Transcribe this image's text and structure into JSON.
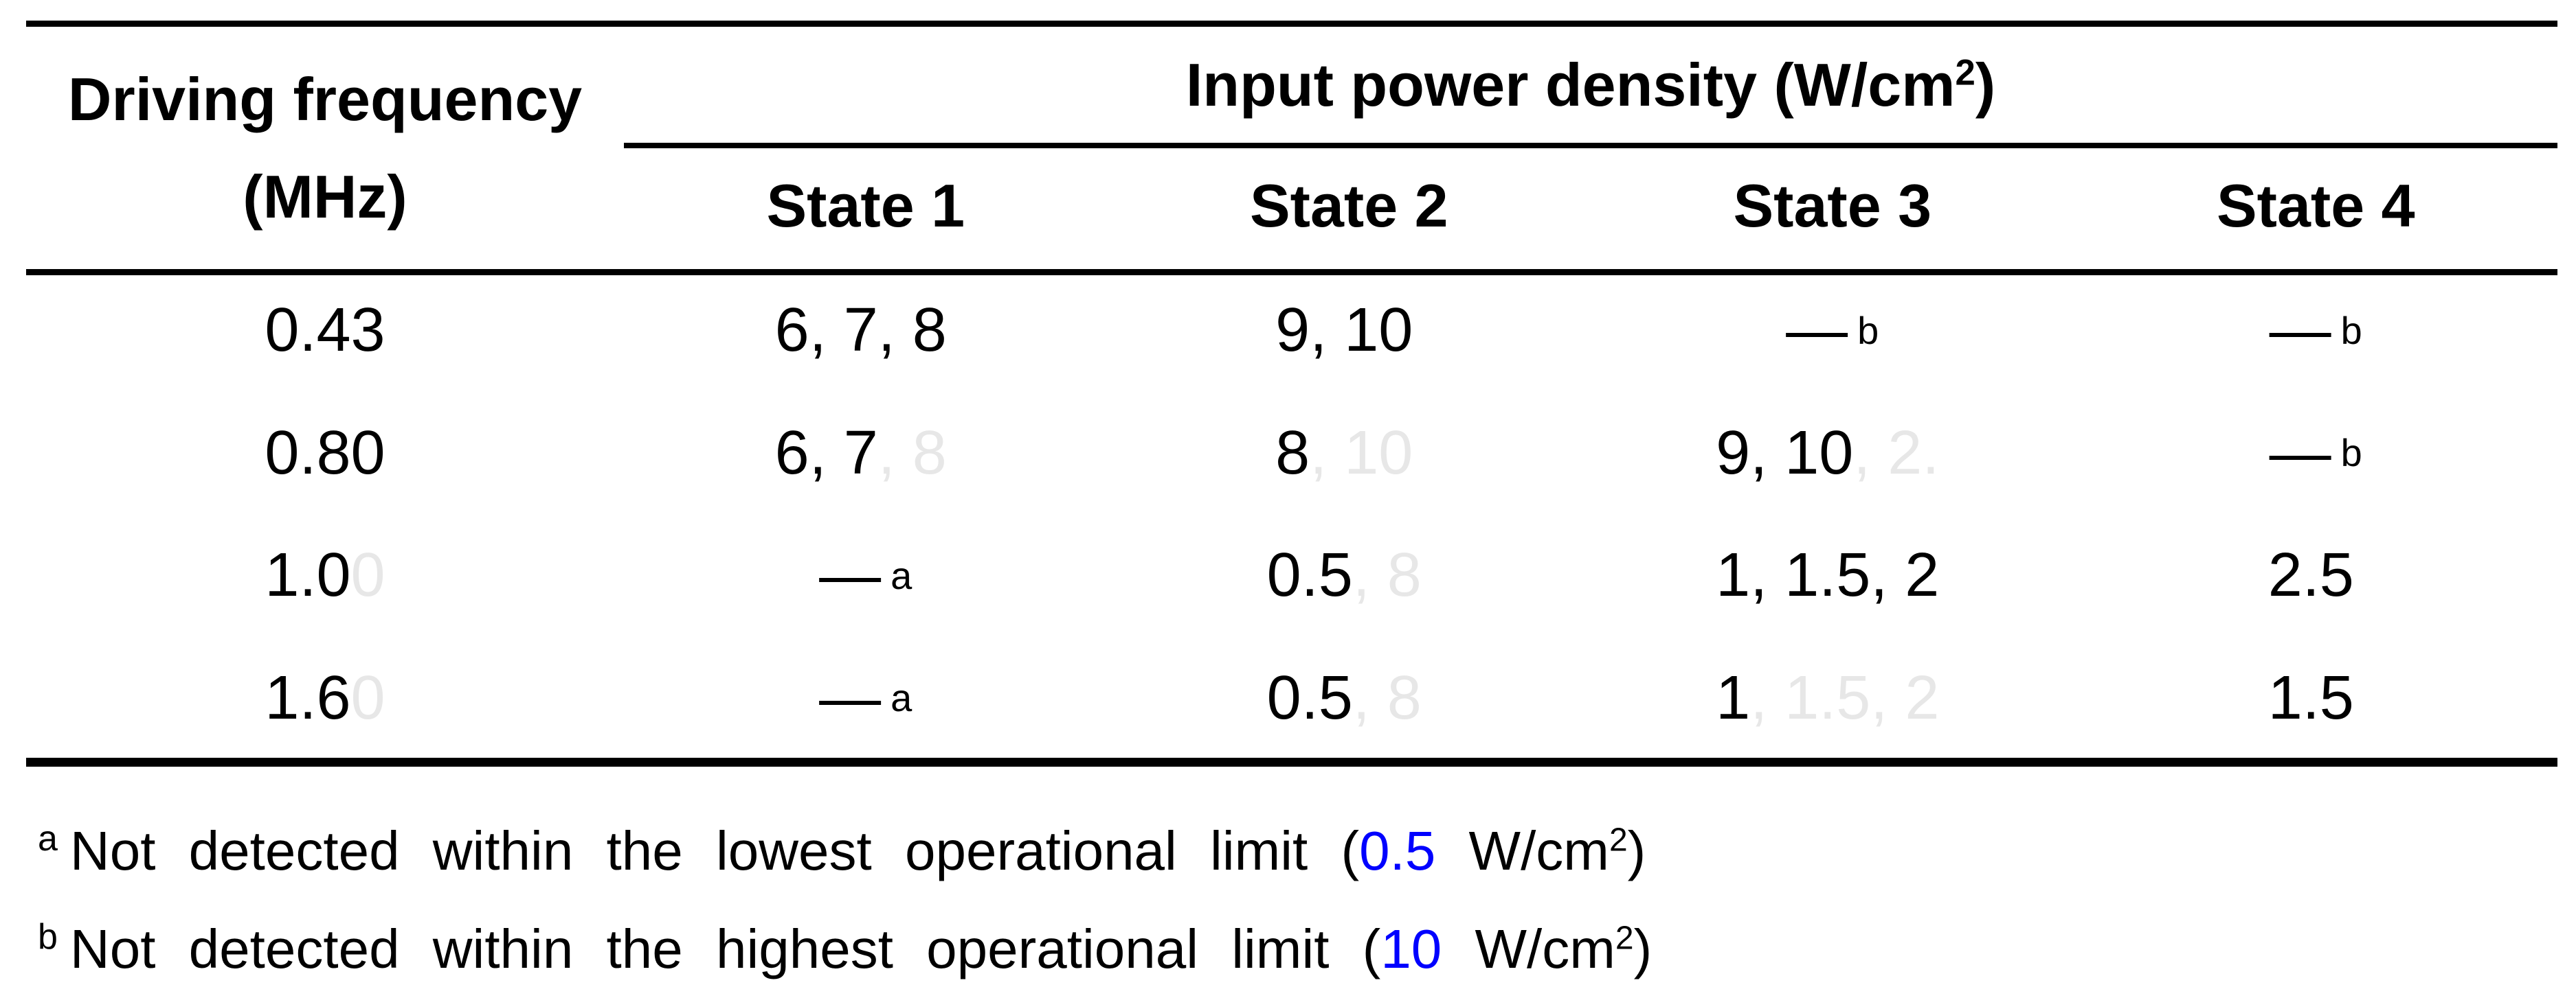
{
  "colors": {
    "accent_blue": "#0000ff",
    "ghost_text": "#e7e7e7",
    "text": "#000000",
    "background": "#ffffff"
  },
  "table": {
    "row_header": {
      "line1": "Driving frequency",
      "line2": "(MHz)"
    },
    "group_header": {
      "pre": "Input power density (W/cm",
      "sup": "2",
      "post": ")"
    },
    "state_headers": [
      "State 1",
      "State 2",
      "State 3",
      "State 4"
    ]
  },
  "rows": [
    {
      "freq": {
        "main": "0.43",
        "ghost": ""
      },
      "cells": [
        {
          "main": "6, 7, 8",
          "ghost": "",
          "sup": ""
        },
        {
          "main": "9, 10",
          "ghost": "",
          "sup": ""
        },
        {
          "main": "—",
          "ghost": "",
          "sup": "b"
        },
        {
          "main": "—",
          "ghost": "",
          "sup": "b"
        }
      ]
    },
    {
      "freq": {
        "main": "0.80",
        "ghost": ""
      },
      "cells": [
        {
          "main": "6, 7",
          "ghost": ", 8",
          "sup": ""
        },
        {
          "main": "8",
          "ghost": ", 10",
          "sup": ""
        },
        {
          "main": "9, 10",
          "ghost": ", 2.",
          "sup": ""
        },
        {
          "main": "—",
          "ghost": "",
          "sup": "b"
        }
      ]
    },
    {
      "freq": {
        "main": "1.0",
        "ghost": "0"
      },
      "cells": [
        {
          "main": "—",
          "ghost": "",
          "sup": "a"
        },
        {
          "main": "0.5",
          "ghost": ", 8",
          "sup": ""
        },
        {
          "main": "1, 1.5, 2",
          "ghost": "",
          "sup": ""
        },
        {
          "main": "2.5",
          "ghost": "",
          "sup": ""
        }
      ]
    },
    {
      "freq": {
        "main": "1.6",
        "ghost": "0"
      },
      "cells": [
        {
          "main": "—",
          "ghost": "",
          "sup": "a"
        },
        {
          "main": "0.5",
          "ghost": ", 8",
          "sup": ""
        },
        {
          "main": "1",
          "ghost": ", 1.5, 2",
          "sup": ""
        },
        {
          "main": "1.5",
          "ghost": "",
          "sup": ""
        }
      ]
    }
  ],
  "footnotes": [
    {
      "marker": "a",
      "pre": "Not detected within the lowest operational limit (",
      "value": "0.5",
      "mid": " W/cm",
      "sup": "2",
      "post": ")"
    },
    {
      "marker": "b",
      "pre": "Not detected within the highest operational limit (",
      "value": "10",
      "mid": " W/cm",
      "sup": "2",
      "post": ")"
    }
  ]
}
